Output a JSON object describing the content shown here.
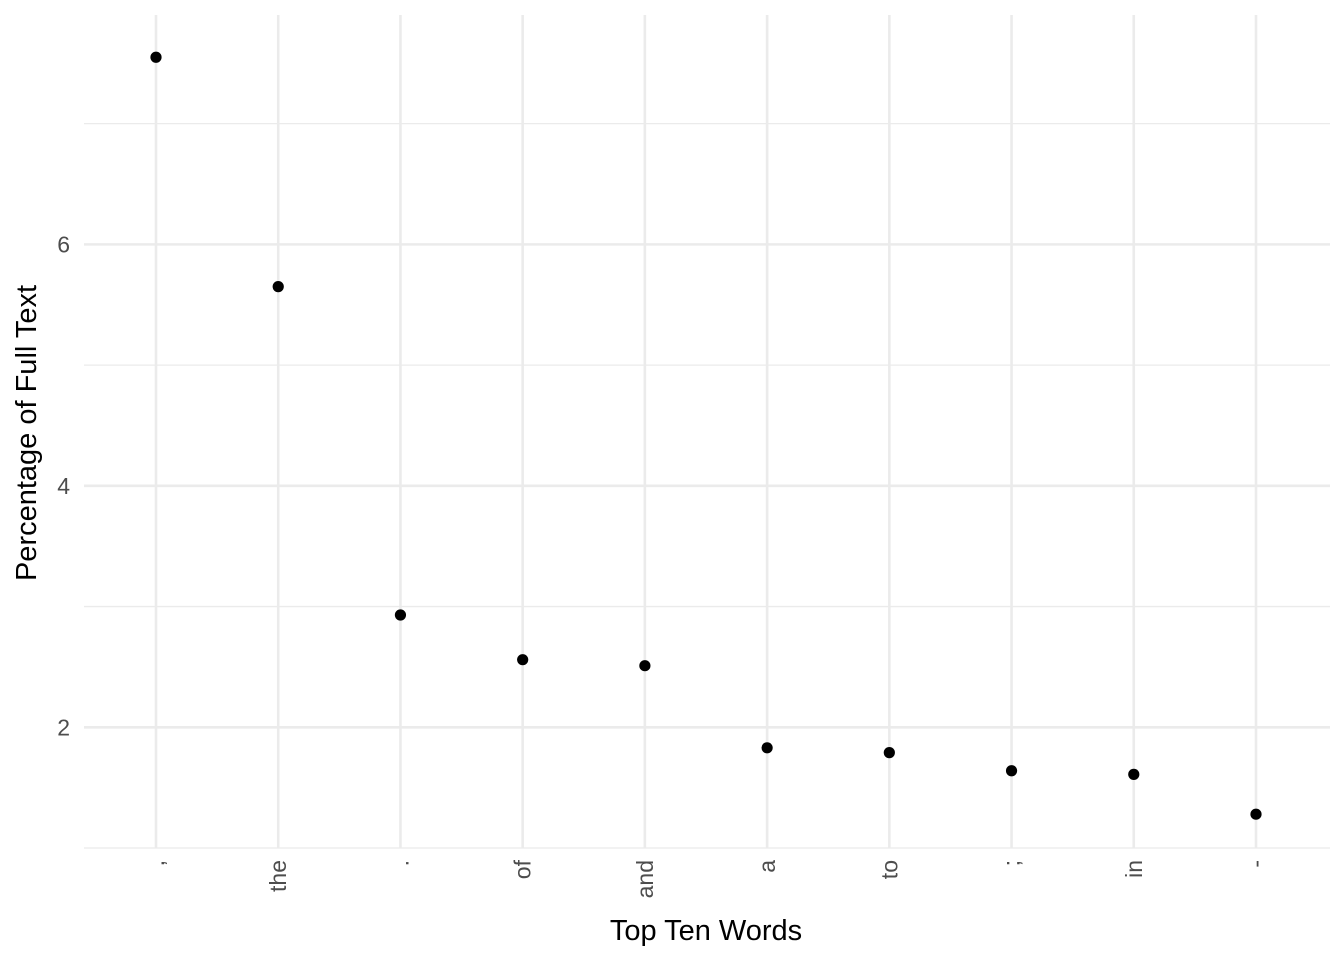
{
  "chart_data": {
    "type": "scatter",
    "categories": [
      ",",
      "the",
      ".",
      "of",
      "and",
      "a",
      "to",
      ";",
      "in",
      "-"
    ],
    "values": [
      7.55,
      5.65,
      2.93,
      2.56,
      2.51,
      1.83,
      1.79,
      1.64,
      1.61,
      1.28
    ],
    "xlabel": "Top Ten Words",
    "ylabel": "Percentage of Full Text",
    "ylim": [
      1.0,
      7.9
    ],
    "yticks": [
      2,
      4,
      6
    ],
    "grid": true,
    "point_color": "#000000",
    "grid_color": "#ebebeb"
  }
}
